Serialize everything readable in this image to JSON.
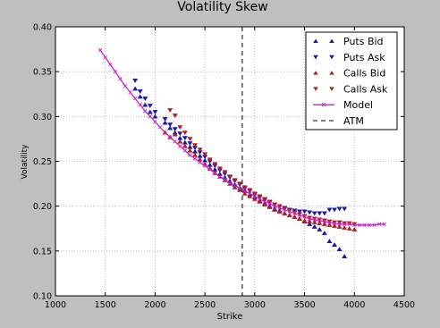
{
  "figure": {
    "background": "#bfbfbf"
  },
  "chart_data": {
    "type": "scatter",
    "title": "Volatility Skew",
    "xlabel": "Strike",
    "ylabel": "Volatility",
    "xlim": [
      1000,
      4500
    ],
    "ylim": [
      0.1,
      0.4
    ],
    "x_ticks": [
      1000,
      1500,
      2000,
      2500,
      3000,
      3500,
      4000,
      4500
    ],
    "x_tick_labels": [
      "1000",
      "1500",
      "2000",
      "2500",
      "3000",
      "3500",
      "4000",
      "4500"
    ],
    "y_ticks": [
      0.1,
      0.15,
      0.2,
      0.25,
      0.3,
      0.35,
      0.4
    ],
    "y_tick_labels": [
      "0.10",
      "0.15",
      "0.20",
      "0.25",
      "0.30",
      "0.35",
      "0.40"
    ],
    "grid": true,
    "legend_position": "top-right",
    "atm_strike": 2875,
    "series": [
      {
        "name": "Puts Bid",
        "marker": "triangle-up",
        "color": "#1a1aa8",
        "x": [
          1800,
          1850,
          1900,
          1950,
          2000,
          2100,
          2150,
          2200,
          2250,
          2300,
          2350,
          2400,
          2450,
          2500,
          2550,
          2600,
          2650,
          2700,
          2750,
          2800,
          2850,
          2900,
          2950,
          3000,
          3050,
          3100,
          3150,
          3200,
          3250,
          3300,
          3350,
          3400,
          3450,
          3500,
          3550,
          3600,
          3650,
          3700,
          3750,
          3800,
          3850,
          3900
        ],
        "y": [
          0.331,
          0.322,
          0.313,
          0.305,
          0.3,
          0.293,
          0.287,
          0.282,
          0.276,
          0.271,
          0.266,
          0.261,
          0.256,
          0.251,
          0.246,
          0.241,
          0.236,
          0.232,
          0.228,
          0.224,
          0.22,
          0.217,
          0.213,
          0.21,
          0.206,
          0.203,
          0.2,
          0.197,
          0.195,
          0.192,
          0.19,
          0.188,
          0.186,
          0.183,
          0.18,
          0.177,
          0.174,
          0.17,
          0.161,
          0.157,
          0.152,
          0.144
        ]
      },
      {
        "name": "Puts Ask",
        "marker": "triangle-down",
        "color": "#1a1aa8",
        "x": [
          1800,
          1850,
          1900,
          1950,
          2000,
          2100,
          2150,
          2200,
          2250,
          2300,
          2350,
          2400,
          2450,
          2500,
          2550,
          2600,
          2650,
          2700,
          2750,
          2800,
          2850,
          2900,
          2950,
          3000,
          3050,
          3100,
          3150,
          3200,
          3250,
          3300,
          3350,
          3400,
          3450,
          3500,
          3550,
          3600,
          3650,
          3700,
          3750,
          3800,
          3850,
          3900
        ],
        "y": [
          0.34,
          0.328,
          0.32,
          0.312,
          0.305,
          0.297,
          0.291,
          0.286,
          0.281,
          0.276,
          0.27,
          0.265,
          0.26,
          0.255,
          0.25,
          0.245,
          0.24,
          0.236,
          0.232,
          0.228,
          0.224,
          0.22,
          0.217,
          0.213,
          0.21,
          0.207,
          0.204,
          0.202,
          0.2,
          0.198,
          0.196,
          0.195,
          0.194,
          0.194,
          0.193,
          0.192,
          0.192,
          0.192,
          0.196,
          0.196,
          0.197,
          0.197
        ]
      },
      {
        "name": "Calls Bid",
        "marker": "triangle-up",
        "color": "#b02020",
        "x": [
          2100,
          2150,
          2200,
          2250,
          2300,
          2350,
          2400,
          2450,
          2500,
          2550,
          2600,
          2650,
          2700,
          2750,
          2800,
          2850,
          2900,
          2950,
          3000,
          3050,
          3100,
          3150,
          3200,
          3250,
          3300,
          3350,
          3400,
          3450,
          3500,
          3550,
          3600,
          3650,
          3700,
          3750,
          3800,
          3850,
          3900,
          3950,
          4000
        ],
        "y": [
          0.282,
          0.277,
          0.28,
          0.272,
          0.267,
          0.262,
          0.257,
          0.252,
          0.247,
          0.242,
          0.237,
          0.233,
          0.229,
          0.225,
          0.221,
          0.218,
          0.214,
          0.211,
          0.208,
          0.205,
          0.202,
          0.199,
          0.196,
          0.194,
          0.192,
          0.19,
          0.188,
          0.186,
          0.184,
          0.183,
          0.182,
          0.181,
          0.18,
          0.179,
          0.178,
          0.177,
          0.176,
          0.175,
          0.174
        ]
      },
      {
        "name": "Calls Ask",
        "marker": "triangle-down",
        "color": "#b02020",
        "x": [
          2150,
          2200,
          2250,
          2300,
          2350,
          2400,
          2450,
          2500,
          2550,
          2600,
          2650,
          2700,
          2750,
          2800,
          2850,
          2900,
          2950,
          3000,
          3050,
          3100,
          3150,
          3200,
          3250,
          3300,
          3350,
          3400,
          3450,
          3500,
          3550,
          3600,
          3650,
          3700,
          3750,
          3800,
          3850,
          3900,
          3950,
          4000
        ],
        "y": [
          0.307,
          0.301,
          0.288,
          0.282,
          0.275,
          0.268,
          0.263,
          0.258,
          0.252,
          0.247,
          0.242,
          0.238,
          0.233,
          0.229,
          0.225,
          0.221,
          0.218,
          0.214,
          0.211,
          0.208,
          0.205,
          0.202,
          0.2,
          0.197,
          0.195,
          0.193,
          0.191,
          0.189,
          0.187,
          0.186,
          0.185,
          0.184,
          0.183,
          0.182,
          0.182,
          0.181,
          0.181,
          0.18
        ]
      },
      {
        "name": "Model",
        "marker": "x-line",
        "color": "#cc22cc",
        "x": [
          1450,
          1500,
          1550,
          1600,
          1650,
          1700,
          1750,
          1800,
          1850,
          1900,
          1950,
          2000,
          2050,
          2100,
          2150,
          2200,
          2250,
          2300,
          2350,
          2400,
          2450,
          2500,
          2550,
          2600,
          2650,
          2700,
          2750,
          2800,
          2850,
          2900,
          2950,
          3000,
          3050,
          3100,
          3150,
          3200,
          3250,
          3300,
          3350,
          3400,
          3450,
          3500,
          3550,
          3600,
          3650,
          3700,
          3750,
          3800,
          3850,
          3900,
          3950,
          4000,
          4050,
          4100,
          4150,
          4200,
          4250,
          4300
        ],
        "y": [
          0.374,
          0.366,
          0.358,
          0.35,
          0.342,
          0.334,
          0.327,
          0.32,
          0.313,
          0.306,
          0.3,
          0.294,
          0.288,
          0.282,
          0.277,
          0.272,
          0.267,
          0.262,
          0.257,
          0.253,
          0.249,
          0.245,
          0.241,
          0.237,
          0.233,
          0.23,
          0.226,
          0.223,
          0.22,
          0.217,
          0.214,
          0.211,
          0.208,
          0.205,
          0.203,
          0.2,
          0.198,
          0.196,
          0.194,
          0.192,
          0.19,
          0.188,
          0.186,
          0.185,
          0.184,
          0.183,
          0.182,
          0.181,
          0.18,
          0.18,
          0.18,
          0.179,
          0.179,
          0.179,
          0.179,
          0.179,
          0.18,
          0.18
        ]
      },
      {
        "name": "ATM",
        "marker": "dashed-line",
        "color": "#000000",
        "x": [
          2875,
          2875
        ],
        "y": [
          0.1,
          0.4
        ]
      }
    ]
  }
}
